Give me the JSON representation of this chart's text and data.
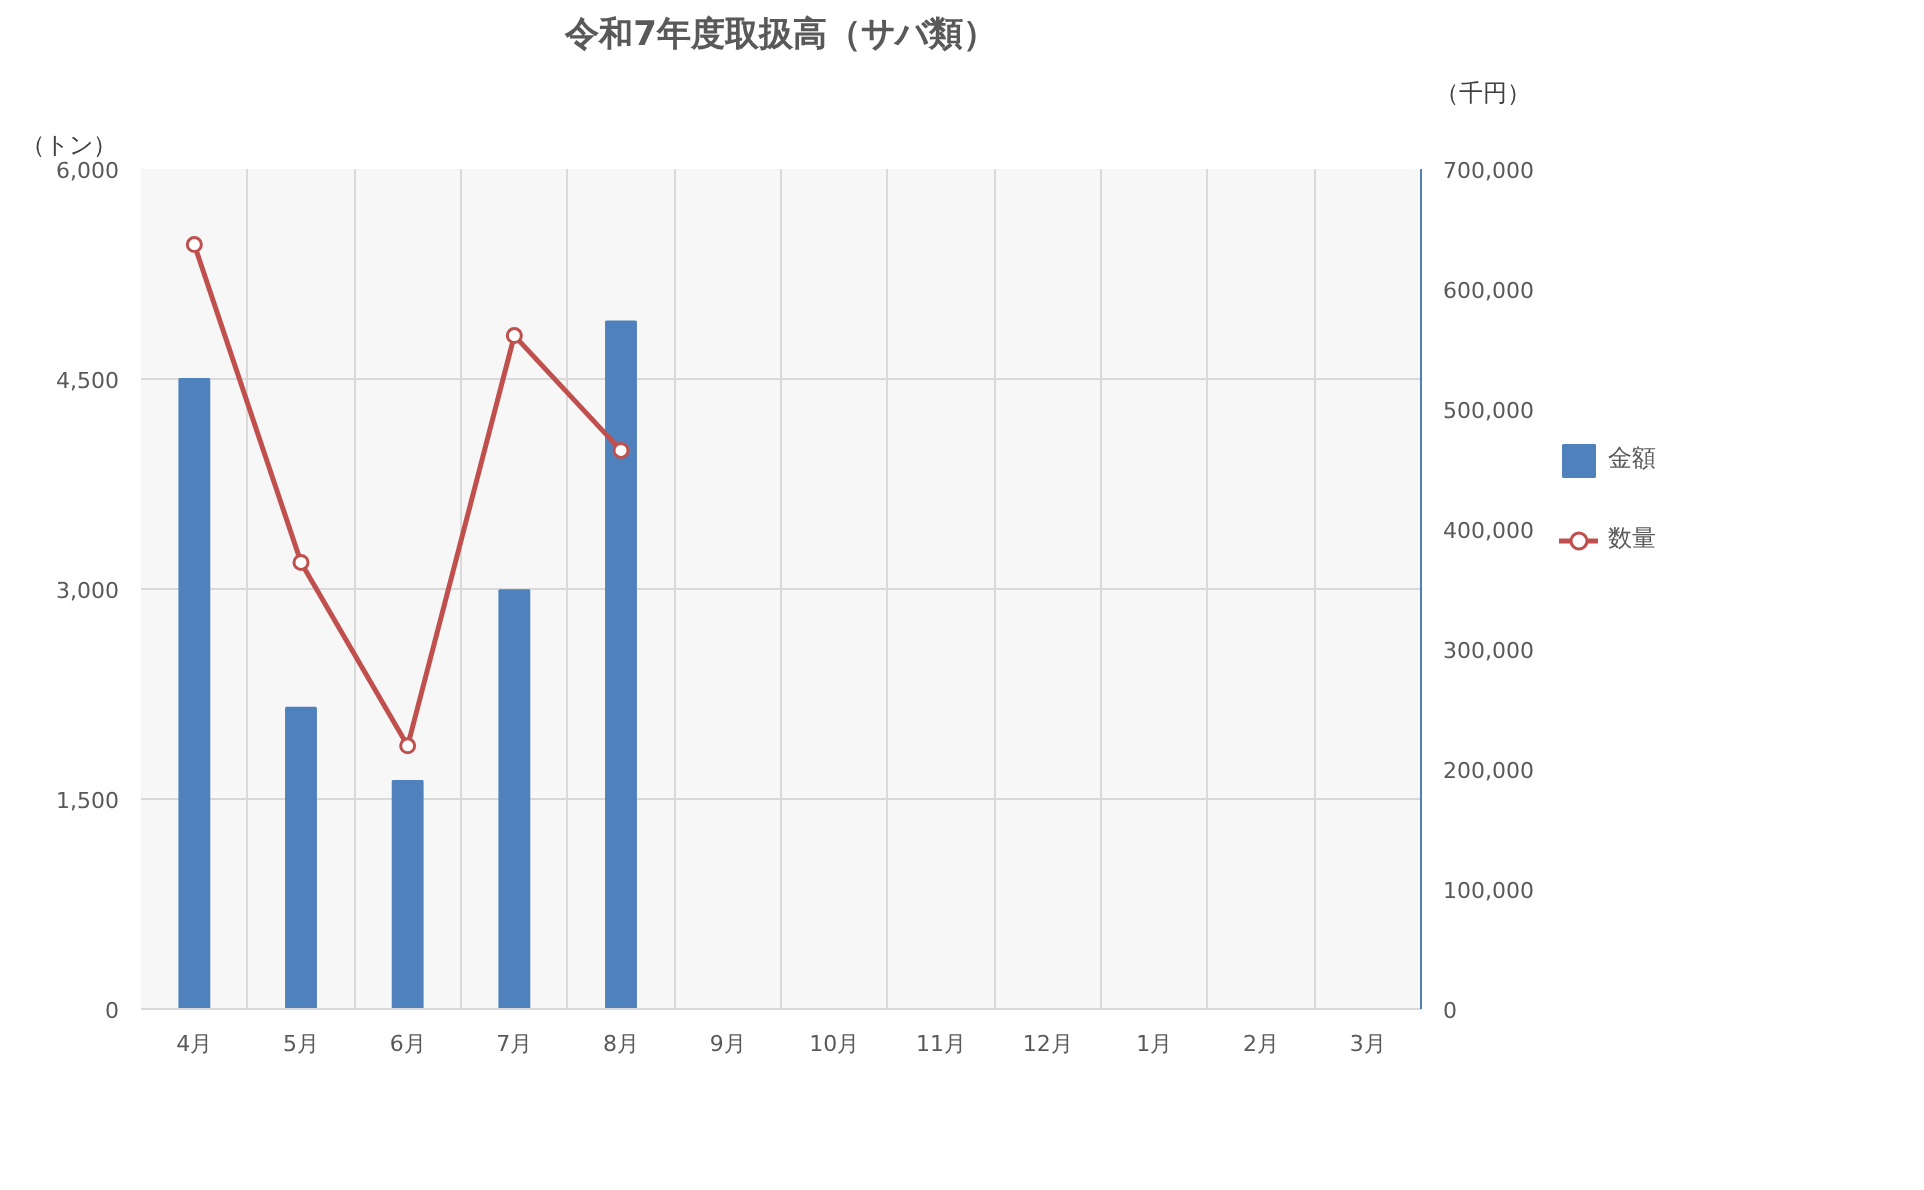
{
  "chart_data": {
    "type": "bar",
    "title": "令和7年度取扱高（サバ類）",
    "ylabel": "（トン）",
    "y2label": "（千円）",
    "categories": [
      "4月",
      "5月",
      "6月",
      "7月",
      "8月",
      "9月",
      "10月",
      "11月",
      "12月",
      "1月",
      "2月",
      "3月"
    ],
    "series": [
      {
        "name": "金額",
        "axis": "y2",
        "color": "#4f81bd",
        "values": [
          525000,
          251000,
          190000,
          349000,
          573000,
          null,
          null,
          null,
          null,
          null,
          null,
          null
        ]
      },
      {
        "name": "数量",
        "type": "line",
        "axis": "y",
        "color": "#c0504d",
        "marker": "circle",
        "line_style": "solid",
        "values": [
          5460,
          3190,
          1880,
          4810,
          3990,
          null,
          null,
          null,
          null,
          null,
          null,
          null
        ]
      }
    ],
    "ylim": [
      0,
      6000
    ],
    "yticks": [
      0,
      {
        "value": 1500,
        "label": "1,500"
      },
      {
        "value": 3000,
        "label": "3,000"
      },
      {
        "value": 4500,
        "label": "4,500"
      },
      {
        "value": 6000,
        "label": "6,000"
      }
    ],
    "y2lim": [
      0,
      700000
    ],
    "y2ticks": [
      0,
      {
        "value": 100000,
        "label": "100,000"
      },
      {
        "value": 200000,
        "label": "200,000"
      },
      {
        "value": 300000,
        "label": "300,000"
      },
      {
        "value": 400000,
        "label": "400,000"
      },
      {
        "value": 500000,
        "label": "500,000"
      },
      {
        "value": 600000,
        "label": "600,000"
      },
      {
        "value": 700000,
        "label": "700,000"
      }
    ],
    "grid": true,
    "legend": "right"
  }
}
